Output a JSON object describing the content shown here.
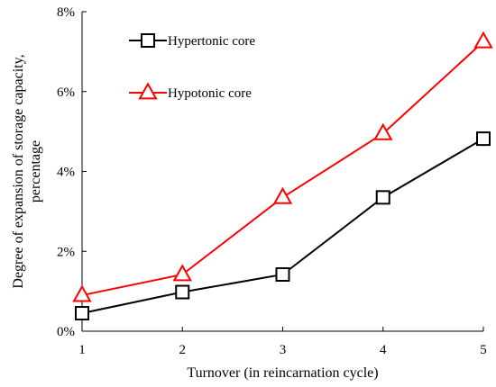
{
  "chart_data": {
    "type": "line",
    "x": [
      1,
      2,
      3,
      4,
      5
    ],
    "x_tick_labels": [
      "1",
      "2",
      "3",
      "4",
      "5"
    ],
    "y_tick_labels": [
      "0%",
      "2%",
      "4%",
      "6%",
      "8%"
    ],
    "y_ticks": [
      0,
      2,
      4,
      6,
      8
    ],
    "xlim": [
      1,
      5
    ],
    "ylim": [
      0,
      8
    ],
    "xlabel": "Turnover (in reincarnation cycle)",
    "ylabel_lines": [
      "Degree of expansion of storage capacity,",
      "percentage"
    ],
    "grid": false,
    "legend_position": "top-left",
    "series": [
      {
        "name": "Hypertonic core",
        "color": "#000000",
        "marker": "square",
        "values": [
          0.45,
          0.98,
          1.42,
          3.35,
          4.82
        ]
      },
      {
        "name": "Hypotonic core",
        "color": "#ff0000",
        "marker": "triangle",
        "values": [
          0.9,
          1.42,
          3.35,
          4.95,
          7.25
        ]
      }
    ]
  }
}
